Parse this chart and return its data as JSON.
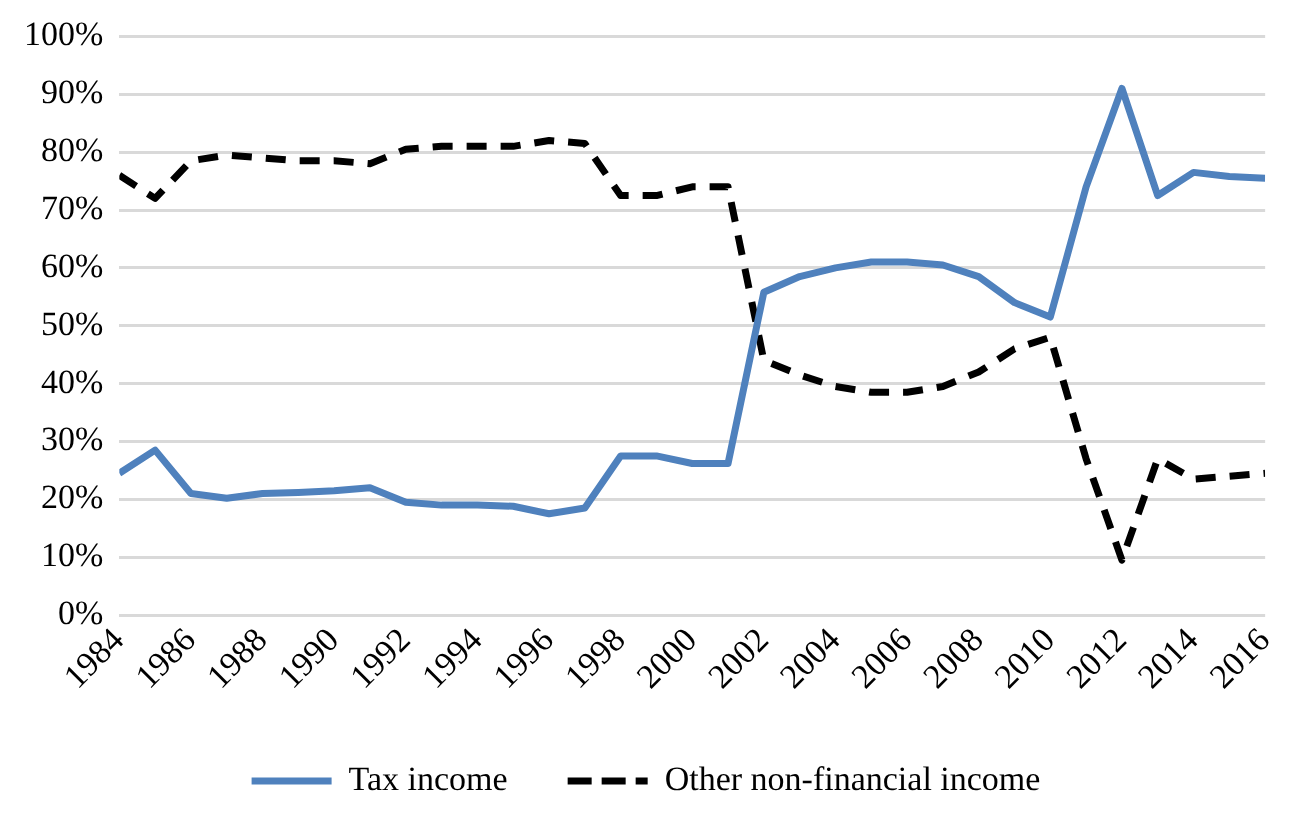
{
  "chart_data": {
    "type": "line",
    "x": [
      1984,
      1985,
      1986,
      1987,
      1988,
      1989,
      1990,
      1991,
      1992,
      1993,
      1994,
      1995,
      1996,
      1997,
      1998,
      1999,
      2000,
      2001,
      2002,
      2003,
      2004,
      2005,
      2006,
      2007,
      2008,
      2009,
      2010,
      2011,
      2012,
      2013,
      2014,
      2015,
      2016
    ],
    "series": [
      {
        "name": "Tax income",
        "color": "#4f81bd",
        "line_style": "solid",
        "values": [
          24.5,
          28.5,
          21,
          20.2,
          21,
          21.2,
          21.5,
          22,
          19.5,
          19,
          19,
          18.8,
          17.5,
          18.5,
          27.5,
          27.5,
          26.2,
          26.2,
          55.8,
          58.5,
          60,
          61,
          61,
          60.5,
          58.5,
          54,
          51.5,
          74,
          91,
          72.5,
          76.5,
          75.8,
          75.5
        ]
      },
      {
        "name": "Other non-financial income",
        "color": "#000000",
        "line_style": "dashed",
        "values": [
          76,
          72,
          78.5,
          79.5,
          79,
          78.5,
          78.5,
          78,
          80.5,
          81,
          81,
          81,
          82,
          81.5,
          72.5,
          72.5,
          74,
          74,
          44,
          41.5,
          39.5,
          38.5,
          38.5,
          39.5,
          42,
          46,
          48,
          27,
          9.5,
          27,
          23.5,
          24,
          24.5
        ]
      }
    ],
    "xlim": [
      1984,
      2016
    ],
    "xticks": [
      1984,
      1986,
      1988,
      1990,
      1992,
      1994,
      1996,
      1998,
      2000,
      2002,
      2004,
      2006,
      2008,
      2010,
      2012,
      2014,
      2016
    ],
    "ylim": [
      0,
      100
    ],
    "yticks": [
      {
        "value": 0,
        "label": "0%"
      },
      {
        "value": 10,
        "label": "10%"
      },
      {
        "value": 20,
        "label": "20%"
      },
      {
        "value": 30,
        "label": "30%"
      },
      {
        "value": 40,
        "label": "40%"
      },
      {
        "value": 50,
        "label": "50%"
      },
      {
        "value": 60,
        "label": "60%"
      },
      {
        "value": 70,
        "label": "70%"
      },
      {
        "value": 80,
        "label": "80%"
      },
      {
        "value": 90,
        "label": "90%"
      },
      {
        "value": 100,
        "label": "100%"
      }
    ],
    "grid": "y",
    "legend": "bottom",
    "marker": "none"
  }
}
